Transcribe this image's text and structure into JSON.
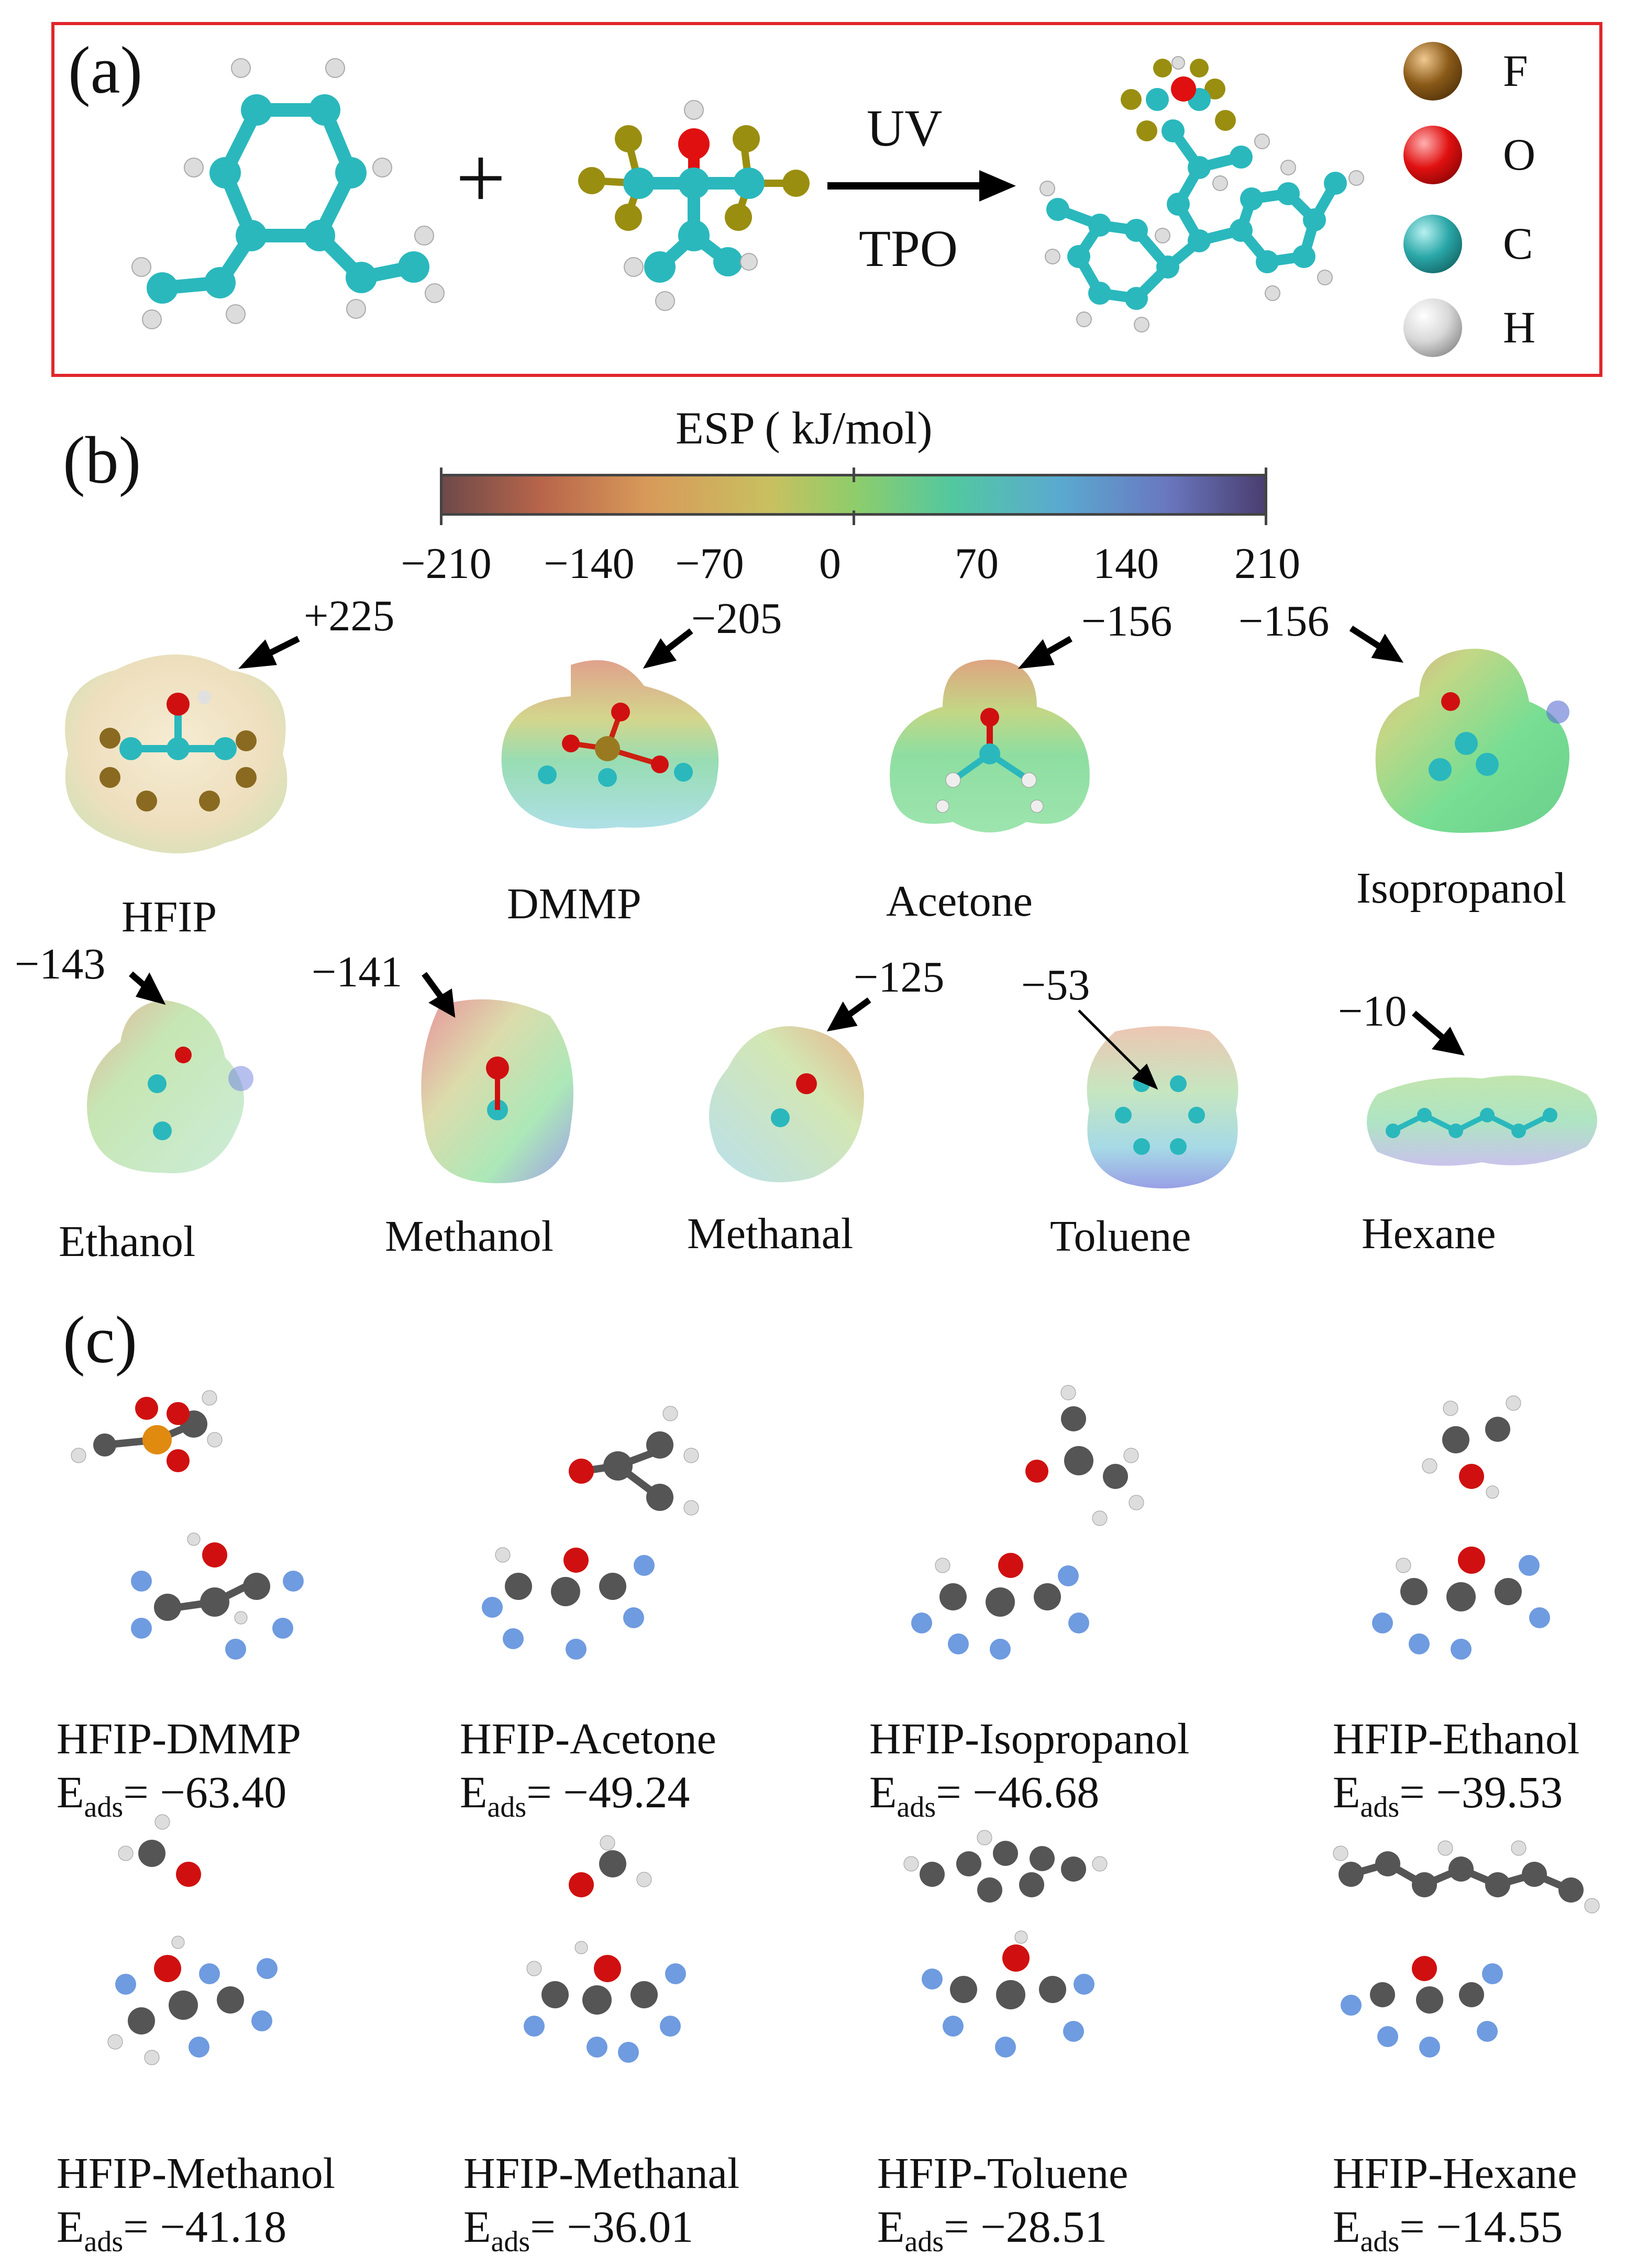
{
  "panel_a": {
    "label": "(a)",
    "plus": "+",
    "arrow_top": "UV",
    "arrow_bottom": "TPO",
    "legend": [
      {
        "symbol": "F",
        "color": "#7a4a10"
      },
      {
        "symbol": "O",
        "color": "#e01010"
      },
      {
        "symbol": "C",
        "color": "#2aa7a8"
      },
      {
        "symbol": "H",
        "color": "#e6e6e6"
      }
    ]
  },
  "panel_b": {
    "label": "(b)",
    "colorbar_title": "ESP ( kJ/mol)",
    "ticks": [
      "−210",
      "−140",
      "−70",
      "0",
      "70",
      "140",
      "210"
    ],
    "molecules": [
      {
        "name": "HFIP",
        "esp": "+225"
      },
      {
        "name": "DMMP",
        "esp": "−205"
      },
      {
        "name": "Acetone",
        "esp": "−156"
      },
      {
        "name": "Isopropanol",
        "esp": "−156"
      },
      {
        "name": "Ethanol",
        "esp": "−143"
      },
      {
        "name": "Methanol",
        "esp": "−141"
      },
      {
        "name": "Methanal",
        "esp": "−125"
      },
      {
        "name": "Toluene",
        "esp": "−53"
      },
      {
        "name": "Hexane",
        "esp": "−10"
      }
    ]
  },
  "panel_c": {
    "label": "(c)",
    "eads_prefix": "E",
    "eads_sub": "ads",
    "complexes": [
      {
        "name": "HFIP-DMMP",
        "eads": "= −63.40"
      },
      {
        "name": "HFIP-Acetone",
        "eads": "= −49.24"
      },
      {
        "name": "HFIP-Isopropanol",
        "eads": "= −46.68"
      },
      {
        "name": "HFIP-Ethanol",
        "eads": "= −39.53"
      },
      {
        "name": "HFIP-Methanol",
        "eads": "= −41.18"
      },
      {
        "name": "HFIP-Methanal",
        "eads": "= −36.01"
      },
      {
        "name": "HFIP-Toluene",
        "eads": "= −28.51"
      },
      {
        "name": "HFIP-Hexane",
        "eads": "= −14.55"
      }
    ]
  },
  "colors": {
    "frame": "#e0262b",
    "carbon_teal": "#2ab8bd",
    "carbon_grey": "#555555",
    "fluorine_olive": "#9a8e10",
    "fluorine_blue": "#6f9be0",
    "oxygen": "#e01010",
    "phosphorus": "#e08a10",
    "hydrogen": "#e8e8e8"
  }
}
